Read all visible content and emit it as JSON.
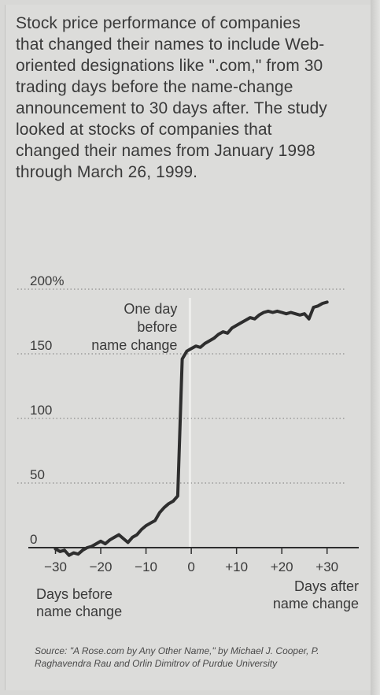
{
  "intro_text": "Stock price performance of companies that changed their names to include Web-oriented designations like \".com,\" from 30 trading days before the name-change announcement to 30 days after. The study looked at stocks of companies that changed their names from January 1998 through March 26, 1999.",
  "source_text": "Source: \"A Rose.com by Any Other Name,\" by Michael J. Cooper, P. Raghavendra Rau and Orlin Dimitrov of Purdue University",
  "colors": {
    "line": "#2e2e2e",
    "grid": "#7a7a7a",
    "marker": "#f2f2f0"
  },
  "chart_data": {
    "type": "line",
    "title": "",
    "ylim": [
      -5,
      200
    ],
    "xlim": [
      -36,
      37
    ],
    "y_ticks": [
      {
        "value": 200,
        "label": "200%"
      },
      {
        "value": 150,
        "label": "150"
      },
      {
        "value": 100,
        "label": "100"
      },
      {
        "value": 50,
        "label": "50"
      },
      {
        "value": 0,
        "label": "0"
      }
    ],
    "x_ticks": [
      {
        "value": -30,
        "label": "−30"
      },
      {
        "value": -20,
        "label": "−20"
      },
      {
        "value": -10,
        "label": "−10"
      },
      {
        "value": 0,
        "label": "0"
      },
      {
        "value": 10,
        "label": "+10"
      },
      {
        "value": 20,
        "label": "+20"
      },
      {
        "value": 30,
        "label": "+30"
      }
    ],
    "xlabel_left": [
      "Days before",
      "name change"
    ],
    "xlabel_right": [
      "Days after",
      "name change"
    ],
    "annotation": {
      "x": -1,
      "lines": [
        "One day",
        "before",
        "name change"
      ]
    },
    "grid": true,
    "series": [
      {
        "x": [
          -30,
          -29,
          -28,
          -27,
          -26,
          -25,
          -24,
          -23,
          -22,
          -21,
          -20,
          -19,
          -18,
          -17,
          -16,
          -15,
          -14,
          -13,
          -12,
          -11,
          -10,
          -9,
          -8,
          -7,
          -6,
          -5,
          -4,
          -3,
          -2,
          -1,
          0,
          1,
          2,
          3,
          4,
          5,
          6,
          7,
          8,
          9,
          10,
          11,
          12,
          13,
          14,
          15,
          16,
          17,
          18,
          19,
          20,
          21,
          22,
          23,
          24,
          25,
          26,
          27,
          28,
          29,
          30
        ],
        "values": [
          -1,
          -3,
          -2,
          -6,
          -4,
          -5,
          -2,
          0,
          1,
          3,
          5,
          3,
          6,
          8,
          10,
          7,
          4,
          8,
          10,
          14,
          17,
          19,
          21,
          27,
          31,
          34,
          36,
          40,
          146,
          152,
          154,
          156,
          155,
          158,
          160,
          162,
          165,
          167,
          166,
          170,
          172,
          174,
          176,
          178,
          177,
          180,
          182,
          183,
          182,
          183,
          182,
          181,
          182,
          181,
          180,
          181,
          177,
          186,
          187,
          189,
          190
        ]
      }
    ]
  }
}
